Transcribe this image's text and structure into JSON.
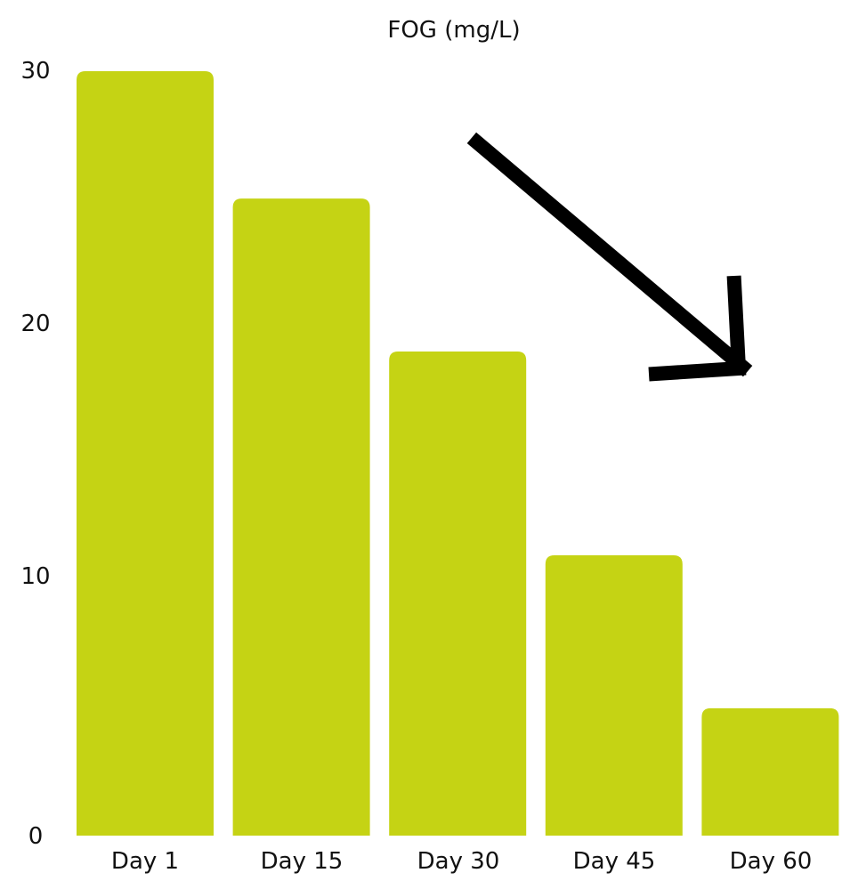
{
  "chart_data": {
    "type": "bar",
    "title": "FOG (mg/L)",
    "categories": [
      "Day 1",
      "Day 15",
      "Day 30",
      "Day 45",
      "Day 60"
    ],
    "values": [
      30,
      25,
      19,
      11,
      5
    ],
    "yticks": [
      "0",
      "10",
      "20",
      "30"
    ],
    "ylim": [
      0,
      30
    ],
    "xlabel": "",
    "ylabel": "",
    "grid": false,
    "bar_color": "#c5d314",
    "annotation": "downward-trend-arrow",
    "annotation_color": "#000000"
  }
}
